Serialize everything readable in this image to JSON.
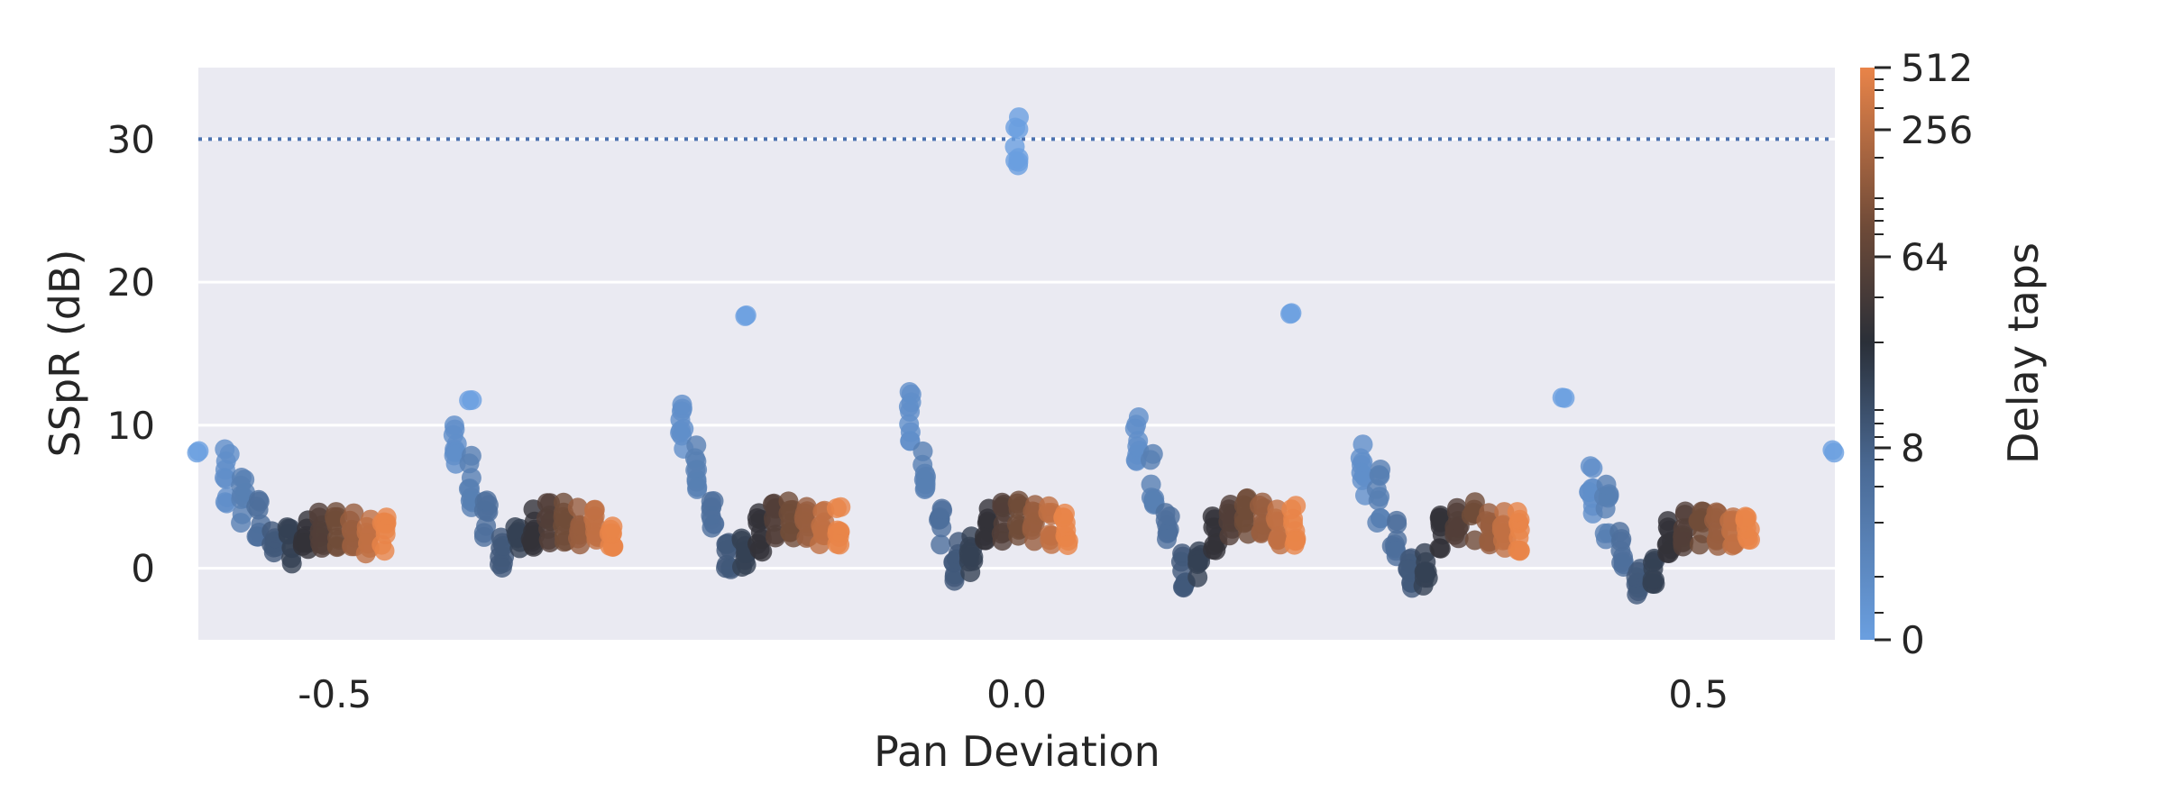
{
  "chart_data": {
    "type": "scatter",
    "title": "",
    "xlabel": "Pan Deviation",
    "ylabel": "SSpR (dB)",
    "xlim": [
      -0.6,
      0.6
    ],
    "ylim": [
      -5,
      35
    ],
    "x_ticks": [
      -0.5,
      0.0,
      0.5
    ],
    "x_tick_labels": [
      "-0.5",
      "0.0",
      "0.5"
    ],
    "y_ticks": [
      0,
      10,
      20,
      30
    ],
    "y_tick_labels": [
      "0",
      "10",
      "20",
      "30"
    ],
    "grid": true,
    "background": "#eaeaf2",
    "reference_line": {
      "y": 30,
      "style": "dotted",
      "color": "#4c72b0"
    },
    "colorbar": {
      "label": "Delay taps",
      "scale": "symlog",
      "ticks": [
        0,
        8,
        64,
        256,
        512
      ],
      "tick_labels": [
        "0",
        "8",
        "64",
        "256",
        "512"
      ],
      "colors": [
        "#6a9fe0",
        "#4a6a95",
        "#2a2f38",
        "#6e4a38",
        "#e98449"
      ]
    },
    "groups": [
      {
        "pan": -0.6,
        "center_x": -0.5,
        "values": [
          8.2,
          6.5,
          5.0,
          3.5,
          1.5,
          1.5,
          2.5,
          2.5,
          2.6,
          2.5,
          2.4,
          2.5
        ]
      },
      {
        "pan": -0.4,
        "center_x": -0.333,
        "values": [
          11.8,
          8.2,
          6.0,
          3.5,
          1.0,
          1.5,
          2.8,
          3.2,
          3.2,
          3.0,
          2.9,
          2.8
        ]
      },
      {
        "pan": -0.2,
        "center_x": -0.167,
        "values": [
          17.7,
          10.0,
          7.0,
          3.5,
          0.8,
          1.2,
          2.5,
          3.2,
          3.4,
          3.2,
          3.0,
          3.0
        ]
      },
      {
        "pan": 0.0,
        "center_x": 0.0,
        "values": [
          30.2,
          10.5,
          7.0,
          3.0,
          0.5,
          1.0,
          2.8,
          3.3,
          3.5,
          3.2,
          3.0,
          3.0
        ]
      },
      {
        "pan": 0.2,
        "center_x": 0.167,
        "values": [
          17.7,
          9.0,
          6.0,
          2.5,
          0.0,
          0.5,
          2.5,
          3.2,
          3.5,
          3.2,
          3.0,
          3.0
        ]
      },
      {
        "pan": 0.4,
        "center_x": 0.333,
        "values": [
          11.8,
          7.0,
          5.0,
          2.0,
          -0.5,
          0.0,
          2.3,
          3.0,
          3.3,
          3.0,
          2.8,
          2.6
        ]
      },
      {
        "pan": 0.6,
        "center_x": 0.5,
        "values": [
          8.2,
          5.5,
          4.0,
          1.5,
          -1.0,
          -0.5,
          2.0,
          2.8,
          3.0,
          2.8,
          2.5,
          2.3
        ]
      }
    ]
  }
}
